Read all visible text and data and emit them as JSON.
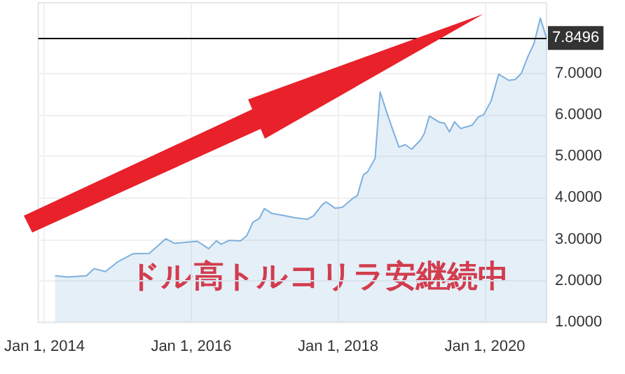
{
  "chart_data": {
    "type": "area",
    "x": [
      "2014-02-23",
      "2014-04-26",
      "2014-07-29",
      "2014-09-05",
      "2014-10-31",
      "2015-01-02",
      "2015-03-17",
      "2015-06-07",
      "2015-08-27",
      "2015-10-10",
      "2015-12-12",
      "2016-02-01",
      "2016-03-28",
      "2016-05-05",
      "2016-05-30",
      "2016-07-07",
      "2016-09-02",
      "2016-10-03",
      "2016-11-03",
      "2016-12-05",
      "2016-12-30",
      "2017-02-06",
      "2017-03-28",
      "2017-05-29",
      "2017-07-31",
      "2017-08-31",
      "2017-10-14",
      "2017-11-02",
      "2017-12-16",
      "2018-01-22",
      "2018-03-19",
      "2018-04-07",
      "2018-05-02",
      "2018-05-08",
      "2018-05-27",
      "2018-07-04",
      "2018-07-29",
      "2018-09-11",
      "2018-10-31",
      "2018-12-01",
      "2019-01-02",
      "2019-02-15",
      "2019-03-06",
      "2019-03-31",
      "2019-05-20",
      "2019-06-14",
      "2019-07-09",
      "2019-08-03",
      "2019-09-03",
      "2019-10-30",
      "2019-11-30",
      "2019-12-26",
      "2020-02-01",
      "2020-03-10",
      "2020-04-29",
      "2020-05-31",
      "2020-07-01",
      "2020-08-01",
      "2020-09-02",
      "2020-10-03",
      "2020-11-03"
    ],
    "series": [
      {
        "color": "#7eb0de",
        "values": [
          2.12,
          2.09,
          2.12,
          2.29,
          2.22,
          2.46,
          2.65,
          2.66,
          3.01,
          2.9,
          2.93,
          2.95,
          2.77,
          2.96,
          2.88,
          2.97,
          2.96,
          3.08,
          3.41,
          3.5,
          3.74,
          3.62,
          3.58,
          3.52,
          3.48,
          3.56,
          3.83,
          3.9,
          3.75,
          3.77,
          4.0,
          4.05,
          4.48,
          4.56,
          4.62,
          4.95,
          6.55,
          5.9,
          5.22,
          5.28,
          5.17,
          5.39,
          5.55,
          5.97,
          5.82,
          5.8,
          5.59,
          5.83,
          5.67,
          5.75,
          5.95,
          6.0,
          6.33,
          6.98,
          6.83,
          6.85,
          7.0,
          7.39,
          7.72,
          8.33,
          7.85
        ]
      }
    ],
    "xlim": [
      "2013-12-01",
      "2020-11-03"
    ],
    "xticks": [
      {
        "value": "2014-01-01",
        "label": "Jan 1, 2014"
      },
      {
        "value": "2016-01-01",
        "label": "Jan 1, 2016"
      },
      {
        "value": "2018-01-01",
        "label": "Jan 1, 2018"
      },
      {
        "value": "2020-01-01",
        "label": "Jan 1, 2020"
      }
    ],
    "ylim": [
      1,
      8.7
    ],
    "yticks": [
      {
        "value": 1,
        "label": "1.0000"
      },
      {
        "value": 2,
        "label": "2.0000"
      },
      {
        "value": 3,
        "label": "3.0000"
      },
      {
        "value": 4,
        "label": "4.0000"
      },
      {
        "value": 5,
        "label": "5.0000"
      },
      {
        "value": 6,
        "label": "6.0000"
      },
      {
        "value": 7,
        "label": "7.0000"
      }
    ],
    "ref_lines": [
      {
        "axis": "y",
        "value": 7.8496,
        "label": "7.8496",
        "color": "#000000"
      }
    ],
    "annotations": [
      "ドル高トルコリラ安継続中"
    ],
    "grid": true
  }
}
